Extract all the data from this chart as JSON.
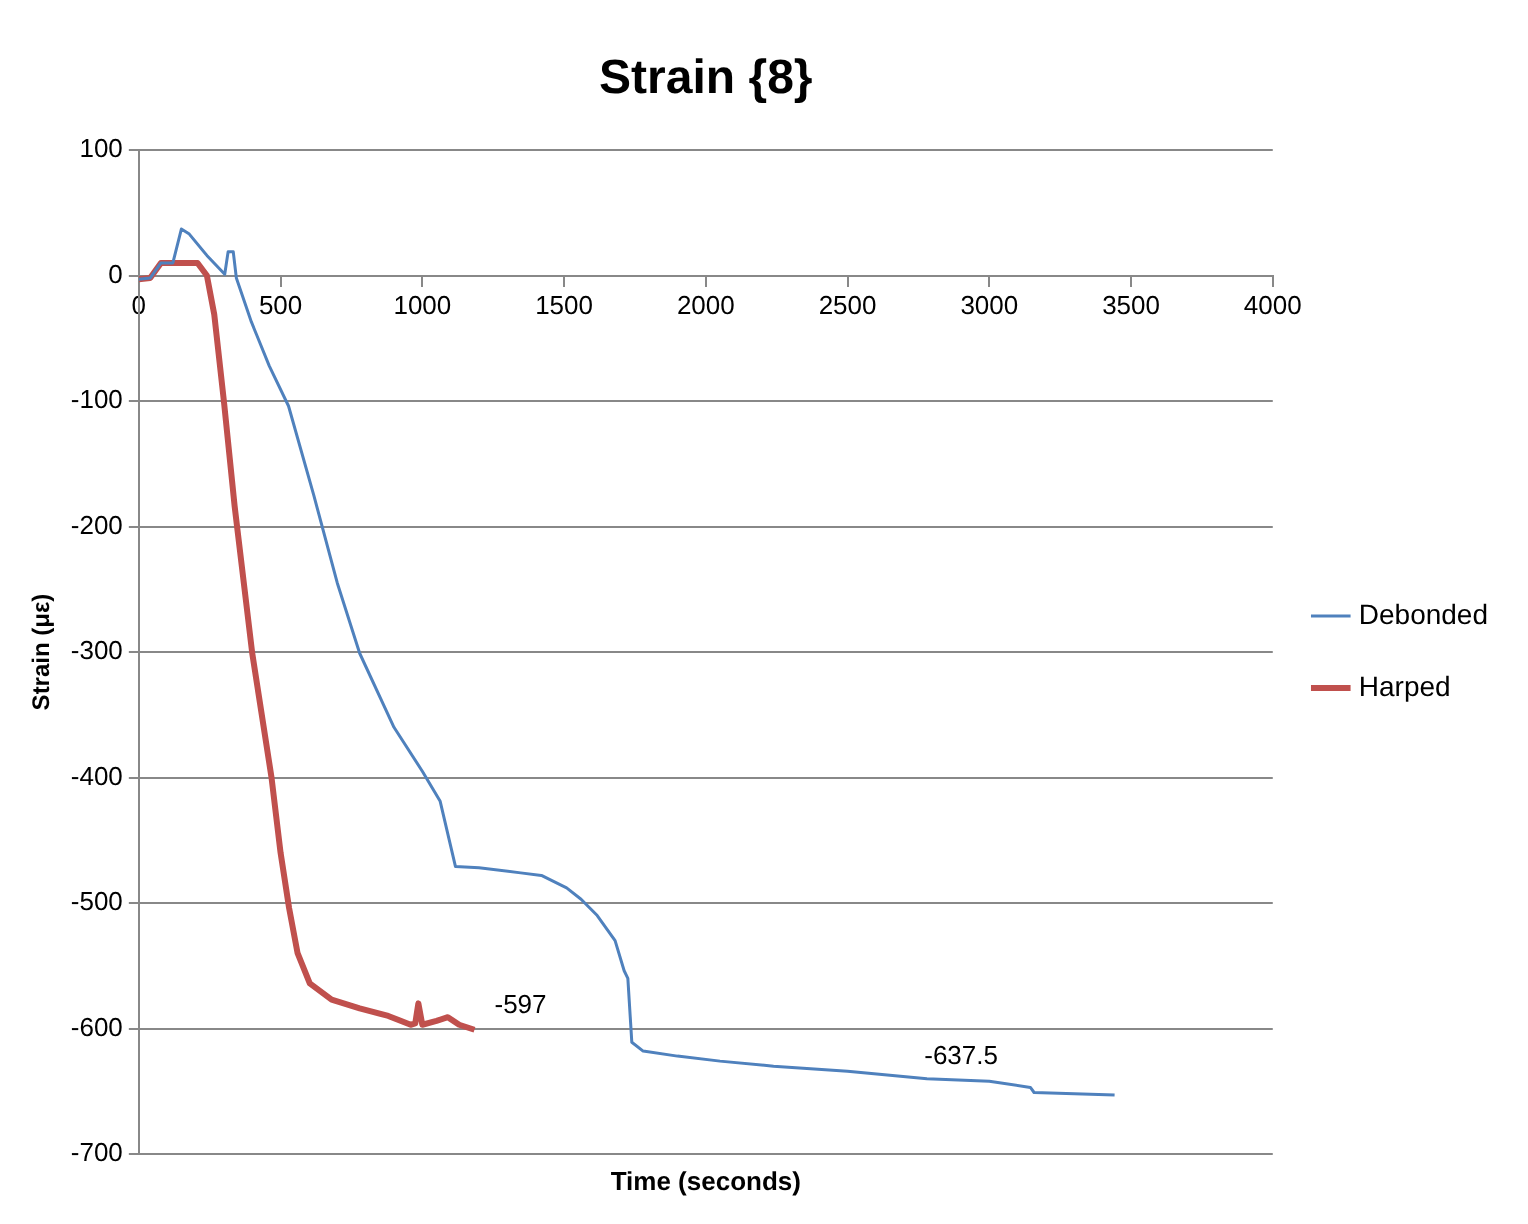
{
  "chart_data": {
    "type": "line",
    "title": "Strain {8}",
    "xlabel": "Time (seconds)",
    "ylabel": "Strain (με)",
    "xlim": [
      0,
      4000
    ],
    "xticks": [
      0,
      500,
      1000,
      1500,
      2000,
      2500,
      3000,
      3500,
      4000
    ],
    "ylim": [
      -700,
      100
    ],
    "yticks": [
      -700,
      -600,
      -500,
      -400,
      -300,
      -200,
      -100,
      0,
      100
    ],
    "grid": "y",
    "legend": "right",
    "marker": "none",
    "line_style": "solid",
    "series": [
      {
        "name": "Debonded",
        "color": "#4f81bd",
        "x": [
          0,
          40,
          78,
          120,
          150,
          178,
          240,
          303,
          315,
          333,
          344,
          397,
          460,
          528,
          617,
          700,
          779,
          900,
          1000,
          1063,
          1117,
          1200,
          1347,
          1420,
          1509,
          1560,
          1617,
          1680,
          1712,
          1725,
          1739,
          1779,
          1900,
          2050,
          2239,
          2500,
          2780,
          3000,
          3145,
          3158,
          3300,
          3442
        ],
        "values": [
          -3,
          -2,
          10,
          10,
          37,
          33,
          16,
          1,
          19,
          19,
          -2,
          -37,
          -72,
          -104,
          -175,
          -245,
          -301,
          -360,
          -395,
          -419,
          -471,
          -472,
          -476,
          -478,
          -488,
          -497,
          -510,
          -530,
          -554,
          -560,
          -611,
          -618,
          -622,
          -626,
          -630,
          -634,
          -640,
          -642,
          -647,
          -651,
          -652,
          -653
        ]
      },
      {
        "name": "Harped",
        "color": "#c0504d",
        "x": [
          0,
          40,
          78,
          150,
          207,
          240,
          266,
          300,
          338,
          400,
          468,
          500,
          530,
          560,
          603,
          680,
          779,
          880,
          959,
          975,
          986,
          1000,
          1050,
          1090,
          1130,
          1184
        ],
        "values": [
          -3,
          -2,
          10,
          10,
          10,
          0,
          -31,
          -100,
          -184,
          -301,
          -400,
          -460,
          -504,
          -540,
          -564,
          -577,
          -584,
          -590,
          -597,
          -596,
          -580,
          -597,
          -594,
          -591,
          -597,
          -601
        ]
      }
    ],
    "annotations": [
      {
        "text": "-597",
        "x": 1184,
        "y": -597
      },
      {
        "text": "-637.5",
        "x": 2700,
        "y": -637.5
      }
    ]
  }
}
